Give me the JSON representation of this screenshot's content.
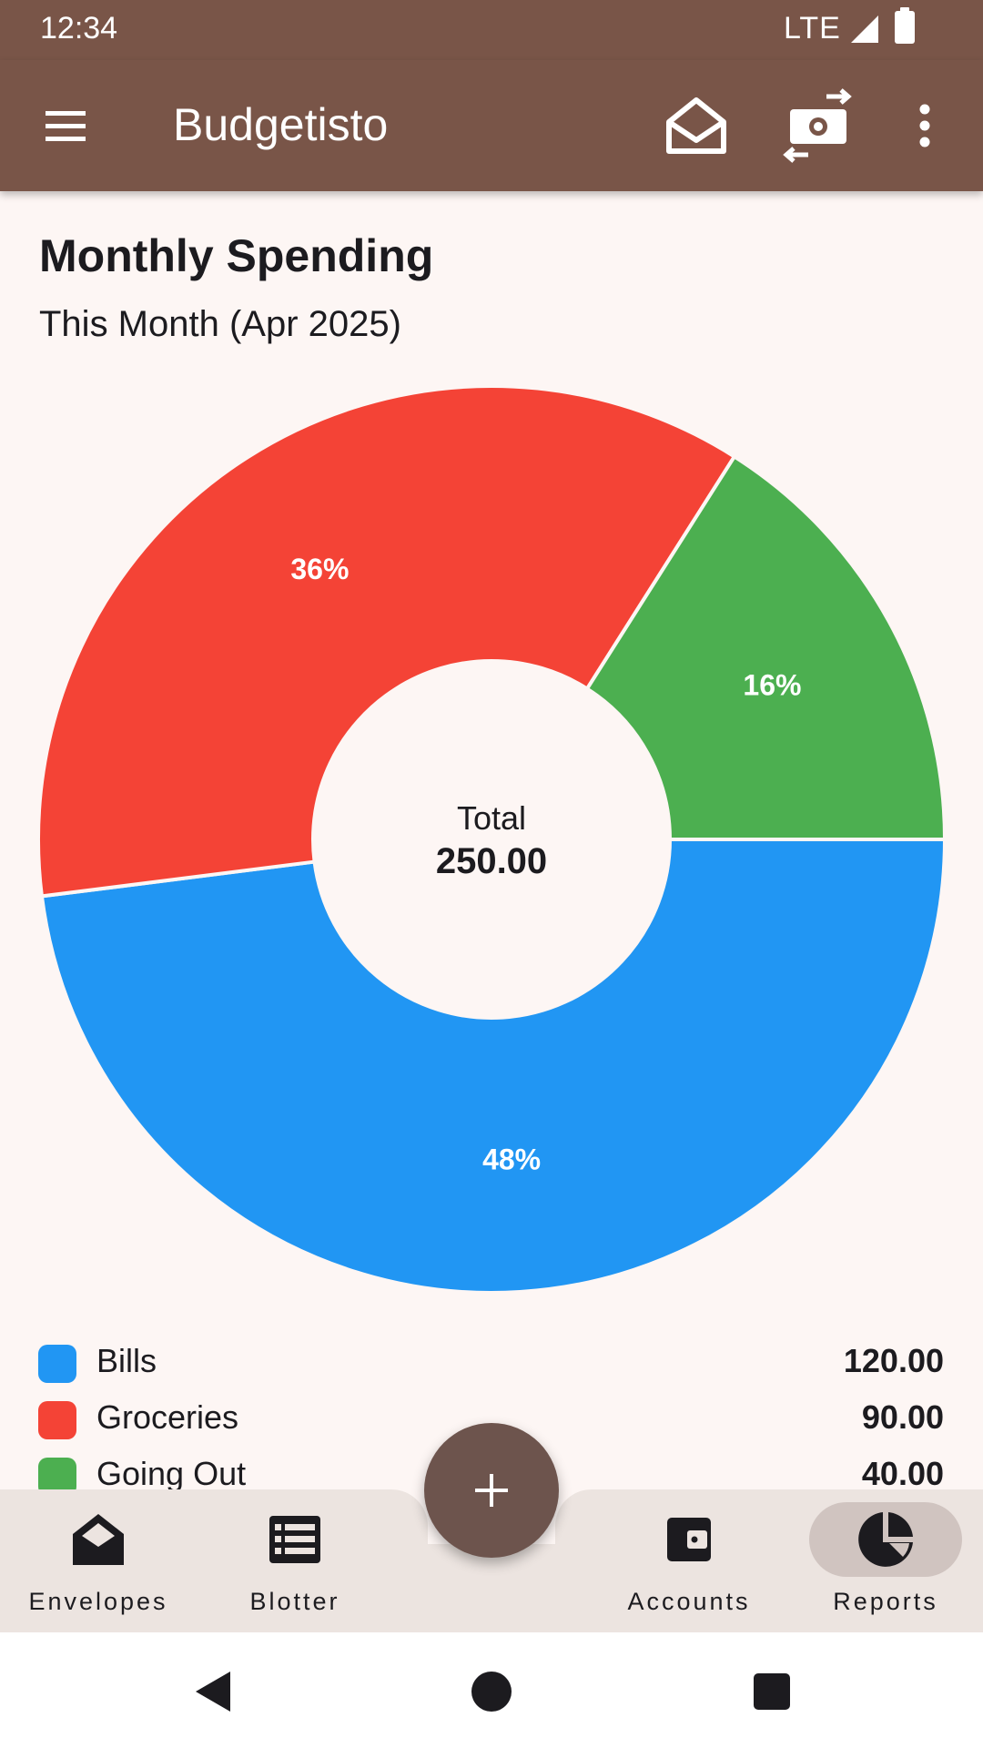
{
  "status_bar": {
    "time": "12:34",
    "network": "LTE"
  },
  "app_bar": {
    "title": "Budgetisto",
    "actions": [
      "envelope-icon",
      "transfer-money-icon",
      "more-vert-icon"
    ]
  },
  "report": {
    "title": "Monthly Spending",
    "period": "This Month (Apr 2025)"
  },
  "chart_data": {
    "type": "pie",
    "style": "donut",
    "title": "Monthly Spending",
    "subtitle": "This Month (Apr 2025)",
    "center_label": "Total",
    "center_value": "250.00",
    "total": 250.0,
    "slices": [
      {
        "name": "Bills",
        "value": 120.0,
        "display_value": "120.00",
        "percent_label": "48%",
        "color": "#2196f3"
      },
      {
        "name": "Groceries",
        "value": 90.0,
        "display_value": "90.00",
        "percent_label": "36%",
        "color": "#f44336"
      },
      {
        "name": "Going Out",
        "value": 40.0,
        "display_value": "40.00",
        "percent_label": "16%",
        "color": "#4caf50"
      }
    ]
  },
  "fab": {
    "icon": "add-icon"
  },
  "bottom_nav": {
    "items": [
      {
        "label": "Envelopes",
        "icon": "envelope-open-icon",
        "active": false
      },
      {
        "label": "Blotter",
        "icon": "list-icon",
        "active": false
      },
      {
        "label": "Accounts",
        "icon": "wallet-icon",
        "active": false
      },
      {
        "label": "Reports",
        "icon": "pie-chart-icon",
        "active": true
      }
    ]
  },
  "colors": {
    "primary": "#795548",
    "background": "#fdf6f4",
    "nav_background": "#ece4e0",
    "nav_active_indicator": "#d0c4c0",
    "fab": "#6d544d"
  }
}
